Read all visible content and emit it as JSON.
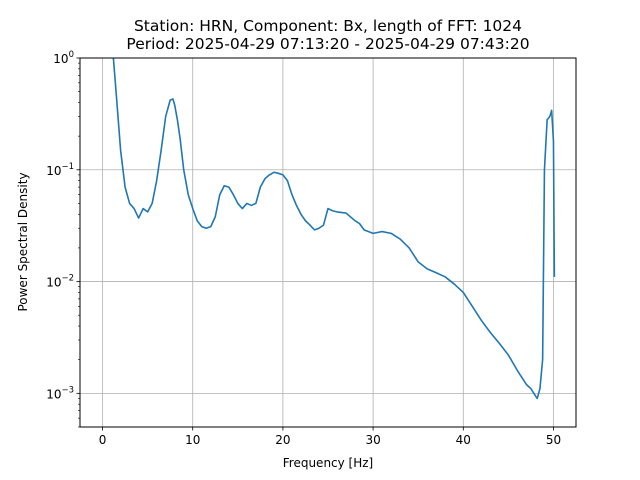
{
  "chart_data": {
    "type": "line",
    "title": "Station: HRN, Component: Bx, length of FFT: 1024",
    "subtitle": "Period: 2025-04-29 07:13:20 - 2025-04-29 07:43:20",
    "xlabel": "Frequency [Hz]",
    "ylabel": "Power Spectral Density",
    "xlim": [
      -2.5,
      52.5
    ],
    "ylim": [
      0.0005,
      1
    ],
    "yscale": "log",
    "grid": true,
    "color": "#1f77b4",
    "xticks": [
      {
        "value": 0,
        "label": "0"
      },
      {
        "value": 10,
        "label": "10"
      },
      {
        "value": 20,
        "label": "20"
      },
      {
        "value": 30,
        "label": "30"
      },
      {
        "value": 40,
        "label": "40"
      },
      {
        "value": 50,
        "label": "50"
      }
    ],
    "yticks": [
      {
        "value": 0.001,
        "base": "10",
        "exp": "−3"
      },
      {
        "value": 0.01,
        "base": "10",
        "exp": "−2"
      },
      {
        "value": 0.1,
        "base": "10",
        "exp": "−1"
      },
      {
        "value": 1,
        "base": "10",
        "exp": "0"
      }
    ],
    "series": [
      {
        "x": [
          1.2,
          1.5,
          2.0,
          2.5,
          3.0,
          3.5,
          4.0,
          4.5,
          5.0,
          5.5,
          6.0,
          6.5,
          7.0,
          7.5,
          7.8,
          8.0,
          8.3,
          8.6,
          9.0,
          9.5,
          10.0,
          10.5,
          11.0,
          11.5,
          12.0,
          12.5,
          13.0,
          13.5,
          14.0,
          14.5,
          15.0,
          15.5,
          16.0,
          16.5,
          17.0,
          17.5,
          18.0,
          18.5,
          19.0,
          19.5,
          20.0,
          20.5,
          21.0,
          21.5,
          22.0,
          22.5,
          23.0,
          23.5,
          24.0,
          24.5,
          25.0,
          25.5,
          26.0,
          27.0,
          28.0,
          28.5,
          29.0,
          30.0,
          31.0,
          32.0,
          33.0,
          34.0,
          35.0,
          36.0,
          37.0,
          38.0,
          39.0,
          40.0,
          41.0,
          42.0,
          43.0,
          44.0,
          45.0,
          46.0,
          47.0,
          47.5,
          48.0,
          48.2,
          48.5,
          48.8,
          49.0,
          49.3,
          49.6,
          49.8,
          50.0,
          50.1
        ],
        "y": [
          1.0,
          0.5,
          0.15,
          0.07,
          0.05,
          0.045,
          0.037,
          0.045,
          0.042,
          0.05,
          0.08,
          0.15,
          0.3,
          0.42,
          0.43,
          0.38,
          0.28,
          0.19,
          0.1,
          0.06,
          0.045,
          0.035,
          0.031,
          0.03,
          0.031,
          0.038,
          0.06,
          0.072,
          0.07,
          0.06,
          0.05,
          0.045,
          0.05,
          0.048,
          0.05,
          0.07,
          0.083,
          0.09,
          0.095,
          0.093,
          0.09,
          0.08,
          0.06,
          0.048,
          0.04,
          0.035,
          0.032,
          0.029,
          0.03,
          0.032,
          0.045,
          0.043,
          0.042,
          0.041,
          0.035,
          0.033,
          0.029,
          0.027,
          0.028,
          0.027,
          0.024,
          0.02,
          0.015,
          0.013,
          0.012,
          0.011,
          0.0095,
          0.008,
          0.006,
          0.0045,
          0.0035,
          0.0028,
          0.0022,
          0.0016,
          0.0012,
          0.0011,
          0.00095,
          0.0009,
          0.0011,
          0.002,
          0.1,
          0.28,
          0.3,
          0.34,
          0.18,
          0.011
        ]
      }
    ]
  }
}
